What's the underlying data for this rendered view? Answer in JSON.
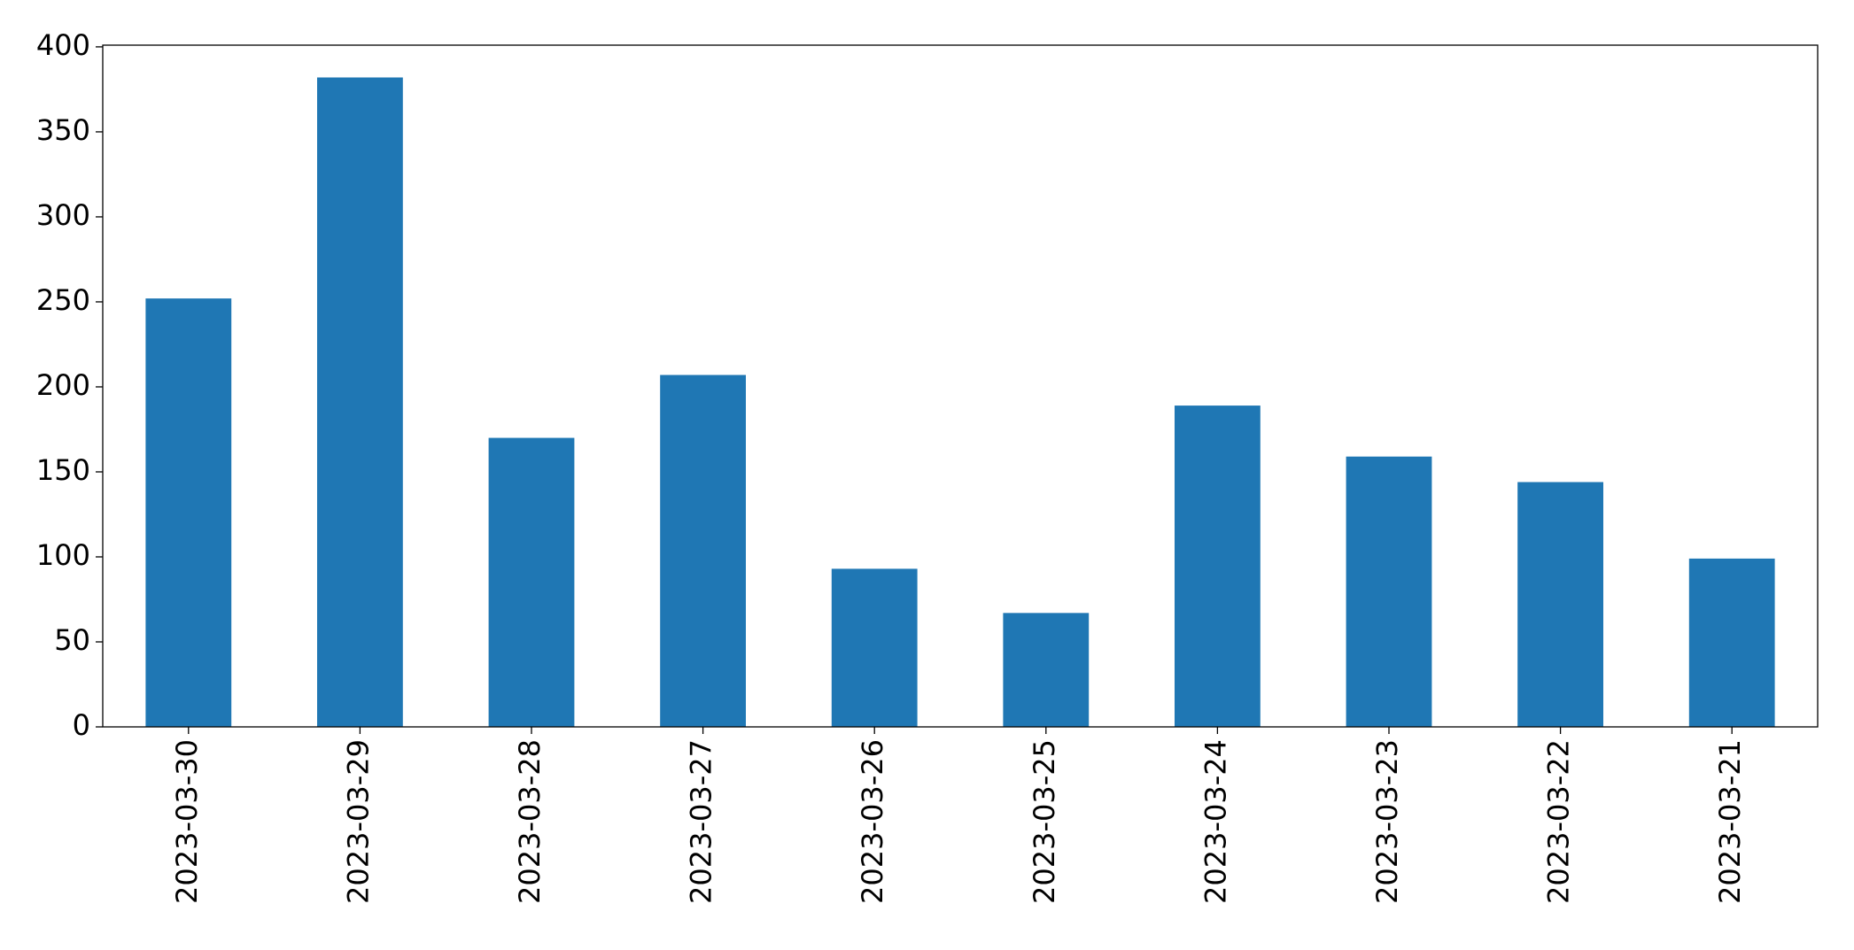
{
  "chart_data": {
    "type": "bar",
    "categories": [
      "2023-03-30",
      "2023-03-29",
      "2023-03-28",
      "2023-03-27",
      "2023-03-26",
      "2023-03-25",
      "2023-03-24",
      "2023-03-23",
      "2023-03-22",
      "2023-03-21"
    ],
    "values": [
      252,
      382,
      170,
      207,
      93,
      67,
      189,
      159,
      144,
      99
    ],
    "color": "#1f77b4",
    "ylim": [
      0,
      401
    ],
    "yticks": [
      0,
      50,
      100,
      150,
      200,
      250,
      300,
      350,
      400
    ],
    "grid": false
  }
}
